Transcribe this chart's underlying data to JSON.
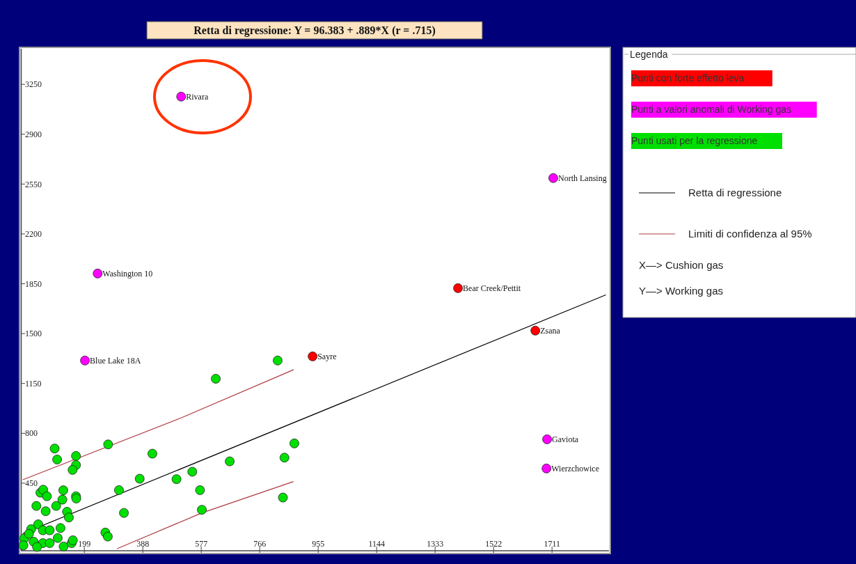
{
  "chart_data": {
    "type": "scatter",
    "title": "Retta di regressione: Y = 96.383 + .889*X (r = .715)",
    "xlabel": "X—> Cushion gas",
    "ylabel": "Y—> Working gas",
    "legend_title": "Legenda",
    "legend": "right",
    "xlim": [
      -5,
      1895
    ],
    "ylim": [
      -15,
      3500
    ],
    "xticks": [
      199,
      388,
      577,
      766,
      955,
      1144,
      1333,
      1522,
      1711
    ],
    "yticks": [
      450,
      800,
      1150,
      1500,
      1850,
      2200,
      2550,
      2900,
      3250
    ],
    "series": [
      {
        "name": "Punti con forte effetto leva",
        "color": "#ff0000",
        "marker": "circle",
        "x": [
          1407,
          1657,
          937
        ],
        "values": [
          1819,
          1521,
          1340
        ]
      },
      {
        "name": "Punti a valori anomali di Working gas",
        "color": "#ff00ff",
        "marker": "circle",
        "x": [
          512,
          242,
          201,
          1715,
          1695,
          1693
        ],
        "values": [
          3164,
          1922,
          1311,
          2592,
          758,
          553
        ]
      },
      {
        "name": "Punti usati per la regressione",
        "color": "#00e000",
        "marker": "circle",
        "x": [
          103,
          111,
          172,
          172,
          161,
          276,
          419,
          378,
          497,
          548,
          573,
          579,
          669,
          846,
          878,
          841,
          311,
          327,
          267,
          275,
          57,
          66,
          78,
          131,
          128,
          172,
          173,
          44,
          108,
          74,
          143,
          149,
          122,
          27,
          50,
          65,
          87,
          5,
          35,
          65,
          87,
          113,
          132,
          158,
          162,
          20,
          46,
          2,
          624,
          824
        ],
        "values": [
          693,
          616,
          641,
          577,
          543,
          722,
          657,
          481,
          478,
          530,
          401,
          263,
          603,
          629,
          729,
          349,
          401,
          241,
          103,
          75,
          383,
          404,
          358,
          400,
          334,
          358,
          342,
          290,
          290,
          253,
          249,
          209,
          135,
          127,
          161,
          119,
          119,
          62,
          39,
          29,
          29,
          65,
          5,
          29,
          49,
          94,
          2,
          13,
          1183,
          1311
        ]
      },
      {
        "name": "Retta di regressione",
        "type": "line",
        "color": "#000000",
        "x": [
          0,
          1885
        ],
        "values": [
          96,
          1772
        ]
      },
      {
        "name": "Limiti di confidenza al 95%",
        "type": "line",
        "color": "#b03a40",
        "x": [
          0,
          514,
          876
        ],
        "values": [
          474,
          910,
          1247
        ]
      },
      {
        "type": "line",
        "color": "#b03a40",
        "x": [
          305,
          579,
          875
        ],
        "values": [
          -10,
          241,
          461
        ]
      }
    ],
    "annotations": [
      {
        "text": "Rivara",
        "x": 512,
        "y": 3164
      },
      {
        "text": "Washington 10",
        "x": 242,
        "y": 1922
      },
      {
        "text": "Blue Lake 18A",
        "x": 201,
        "y": 1311
      },
      {
        "text": "North Lansing",
        "x": 1715,
        "y": 2592
      },
      {
        "text": "Gaviota",
        "x": 1695,
        "y": 758
      },
      {
        "text": "Wierzchowice",
        "x": 1693,
        "y": 553
      },
      {
        "text": "Bear Creek/Pettit",
        "x": 1407,
        "y": 1819
      },
      {
        "text": "Zsana",
        "x": 1657,
        "y": 1521
      },
      {
        "text": "Sayre",
        "x": 937,
        "y": 1340
      }
    ]
  }
}
